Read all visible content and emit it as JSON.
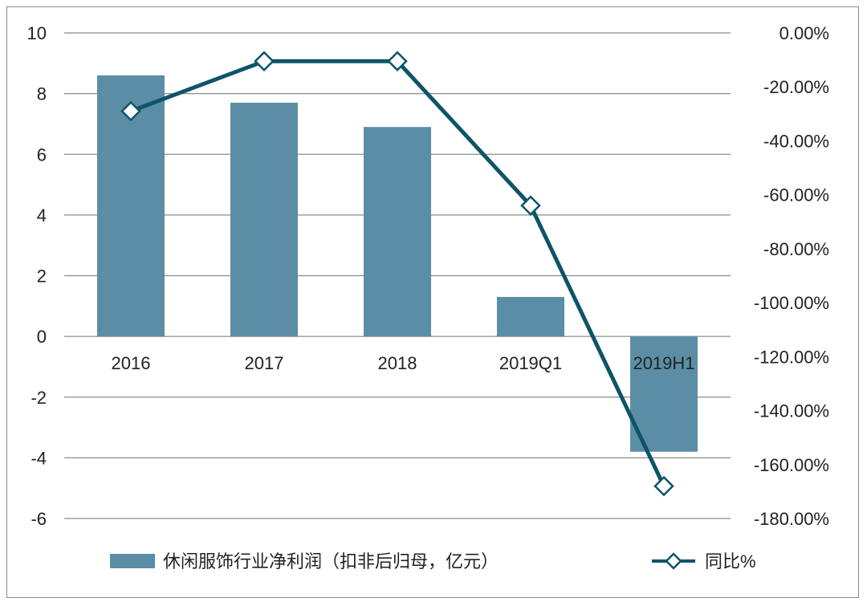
{
  "chart_data": {
    "type": "bar+line",
    "categories": [
      "2016",
      "2017",
      "2018",
      "2019Q1",
      "2019H1"
    ],
    "bar_series": {
      "name": "休闲服饰行业净利润（扣非后归母，亿元）",
      "values": [
        8.6,
        7.7,
        6.9,
        1.3,
        -3.8
      ],
      "color": "#5b8ea6"
    },
    "line_series": {
      "name": "同比%",
      "values": [
        -29.0,
        -10.5,
        -10.5,
        -64.0,
        -168.0
      ],
      "color": "#0e5468"
    },
    "y_left": {
      "min": -6,
      "max": 10,
      "step": 2,
      "tick_labels": [
        "-6",
        "-4",
        "-2",
        "0",
        "2",
        "4",
        "6",
        "8",
        "10"
      ]
    },
    "y_right": {
      "min": -180,
      "max": 0,
      "step": 20,
      "tick_labels": [
        "-180.00%",
        "-160.00%",
        "-140.00%",
        "-120.00%",
        "-100.00%",
        "-80.00%",
        "-60.00%",
        "-40.00%",
        "-20.00%",
        "0.00%"
      ]
    },
    "grid": true,
    "legend": "bottom",
    "grid_color": "#8c8c8c"
  }
}
